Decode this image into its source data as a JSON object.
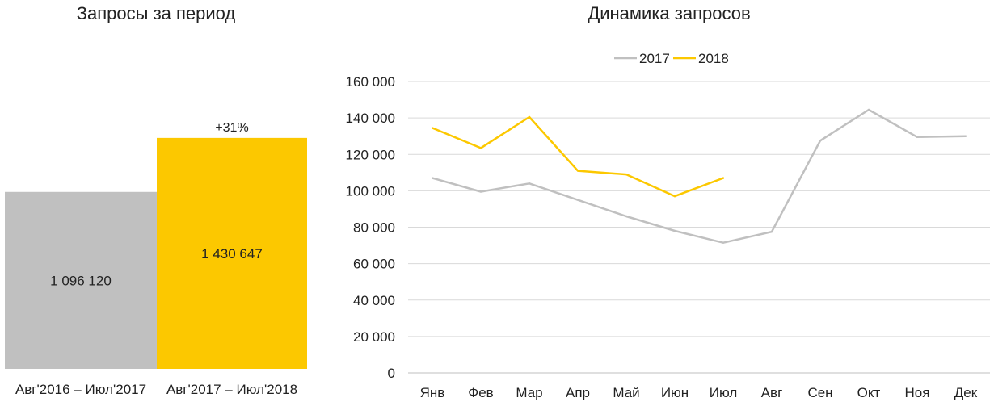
{
  "colors": {
    "series_2017": "#c0c0c0",
    "series_2018": "#fcc800",
    "grid": "#d9d9d9",
    "axis": "#bfbfbf"
  },
  "chart_data": [
    {
      "type": "bar",
      "title": "Запросы за период",
      "categories": [
        "Авг'2016 – Июл'2017",
        "Авг'2017 – Июл'2018"
      ],
      "values": [
        1096120,
        1430647
      ],
      "value_labels": [
        "1 096 120",
        "1 430 647"
      ],
      "bar_colors": [
        "#c0c0c0",
        "#fcc800"
      ],
      "annotation": "+31%",
      "ylim": [
        0,
        2200000
      ]
    },
    {
      "type": "line",
      "title": "Динамика запросов",
      "categories": [
        "Янв",
        "Фев",
        "Мар",
        "Апр",
        "Май",
        "Июн",
        "Июл",
        "Авг",
        "Сен",
        "Окт",
        "Ноя",
        "Дек"
      ],
      "series": [
        {
          "name": "2017",
          "color": "#c0c0c0",
          "values": [
            107000,
            99500,
            104000,
            95000,
            86000,
            78000,
            71500,
            77500,
            127500,
            144500,
            129500,
            130000
          ]
        },
        {
          "name": "2018",
          "color": "#fcc800",
          "values": [
            134500,
            123500,
            140500,
            111000,
            109000,
            97000,
            107000,
            null,
            null,
            null,
            null,
            null
          ]
        }
      ],
      "ylim": [
        0,
        160000
      ],
      "yticks": [
        0,
        20000,
        40000,
        60000,
        80000,
        100000,
        120000,
        140000,
        160000
      ],
      "ytick_labels": [
        "0",
        "20 000",
        "40 000",
        "60 000",
        "80 000",
        "100 000",
        "120 000",
        "140 000",
        "160 000"
      ],
      "grid": true,
      "legend": "top"
    }
  ]
}
